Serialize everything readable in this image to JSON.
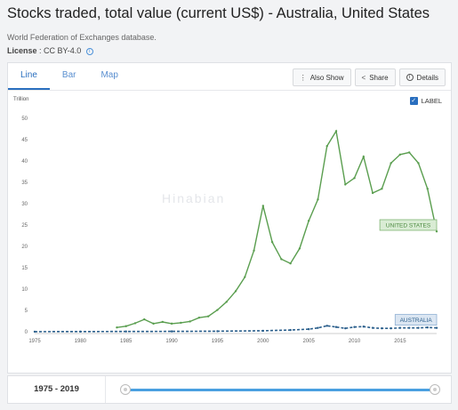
{
  "page": {
    "title": "Stocks traded, total value (current US$) - Australia, United States",
    "source": "World Federation of Exchanges database.",
    "license_label": "License",
    "license_value": ": CC BY-4.0",
    "info_icon": "info-icon"
  },
  "tabs": [
    {
      "label": "Line",
      "active": true
    },
    {
      "label": "Bar",
      "active": false
    },
    {
      "label": "Map",
      "active": false
    }
  ],
  "toolbar": {
    "also_show": "Also Show",
    "share": "Share",
    "details": "Details"
  },
  "label_toggle": {
    "text": "LABEL",
    "checked": true
  },
  "watermark": {
    "text": "Hinabian"
  },
  "range": {
    "label": "1975 - 2019",
    "start_fraction": 0,
    "end_fraction": 1
  },
  "colors": {
    "us": "#5a9e4f",
    "au": "#2b5f8c",
    "accent": "#2a6fbf"
  },
  "chart_data": {
    "type": "line",
    "ylabel": "Trillion",
    "ylim": [
      0,
      50
    ],
    "yticks": [
      0,
      5,
      10,
      15,
      20,
      25,
      30,
      35,
      40,
      45,
      50
    ],
    "xlim": [
      1975,
      2019
    ],
    "xticks": [
      1975,
      1980,
      1985,
      1990,
      1995,
      2000,
      2005,
      2010,
      2015
    ],
    "grid": false,
    "series": [
      {
        "name": "UNITED STATES",
        "color": "#5a9e4f",
        "x": [
          1984,
          1985,
          1986,
          1987,
          1988,
          1989,
          1990,
          1991,
          1992,
          1993,
          1994,
          1995,
          1996,
          1997,
          1998,
          1999,
          2000,
          2001,
          2002,
          2003,
          2004,
          2005,
          2006,
          2007,
          2008,
          2009,
          2010,
          2011,
          2012,
          2013,
          2014,
          2015,
          2016,
          2017,
          2018,
          2019
        ],
        "y": [
          1.0,
          1.3,
          2.0,
          2.9,
          1.9,
          2.3,
          1.9,
          2.1,
          2.4,
          3.3,
          3.6,
          5.1,
          7.0,
          9.5,
          12.8,
          19.0,
          29.5,
          21.0,
          17.0,
          16.0,
          19.5,
          26.0,
          31.0,
          43.5,
          47.0,
          34.5,
          36.0,
          41.0,
          32.5,
          33.5,
          39.5,
          41.5,
          42.0,
          39.5,
          33.5,
          23.5
        ]
      },
      {
        "name": "AUSTRALIA",
        "color": "#2b5f8c",
        "x": [
          1975,
          1980,
          1985,
          1990,
          1995,
          2000,
          2003,
          2005,
          2006,
          2007,
          2008,
          2009,
          2010,
          2011,
          2012,
          2013,
          2014,
          2015,
          2016,
          2017,
          2018,
          2019
        ],
        "y": [
          0.02,
          0.04,
          0.06,
          0.08,
          0.12,
          0.22,
          0.4,
          0.6,
          0.9,
          1.4,
          1.1,
          0.8,
          1.1,
          1.2,
          0.9,
          0.8,
          0.8,
          0.9,
          0.9,
          0.9,
          1.0,
          0.9
        ]
      }
    ]
  }
}
